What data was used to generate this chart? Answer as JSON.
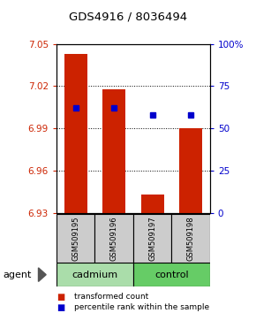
{
  "title": "GDS4916 / 8036494",
  "samples": [
    "GSM509195",
    "GSM509196",
    "GSM509197",
    "GSM509198"
  ],
  "bar_bottoms": [
    6.93,
    6.93,
    6.93,
    6.93
  ],
  "bar_tops": [
    7.043,
    7.018,
    6.943,
    6.99
  ],
  "percentile_values": [
    62,
    62,
    58,
    58
  ],
  "ylim": [
    6.93,
    7.05
  ],
  "yticks_left": [
    6.93,
    6.96,
    6.99,
    7.02,
    7.05
  ],
  "yticks_right": [
    0,
    25,
    50,
    75,
    100
  ],
  "bar_color": "#cc2200",
  "percentile_color": "#0000cc",
  "sample_box_color": "#cccccc",
  "cadmium_color": "#aaddaa",
  "control_color": "#66cc66",
  "groups": [
    {
      "name": "cadmium",
      "indices": [
        0,
        1
      ]
    },
    {
      "name": "control",
      "indices": [
        2,
        3
      ]
    }
  ],
  "legend_items": [
    {
      "label": "transformed count",
      "color": "#cc2200"
    },
    {
      "label": "percentile rank within the sample",
      "color": "#0000cc"
    }
  ]
}
